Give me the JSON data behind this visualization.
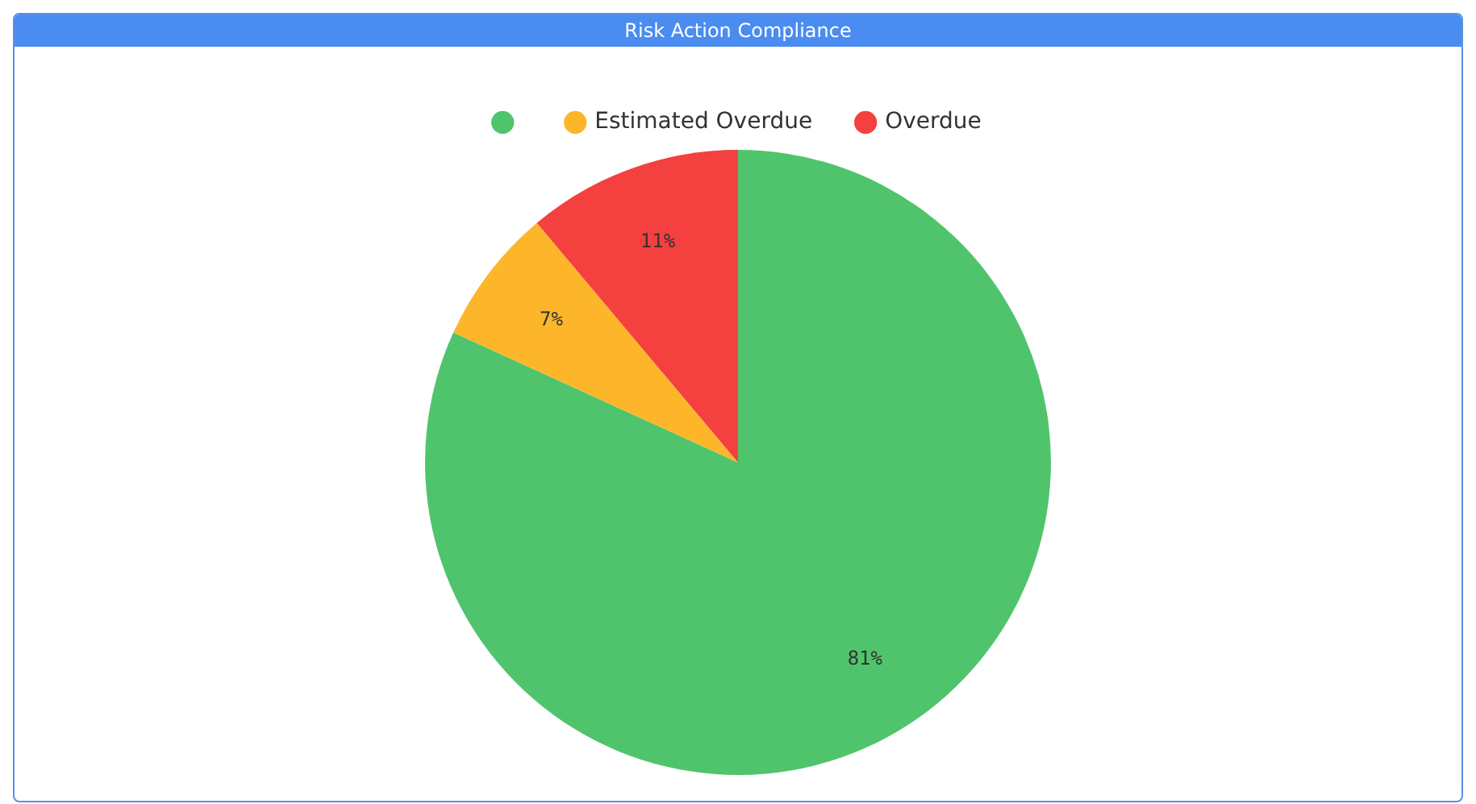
{
  "chart_data": {
    "type": "pie",
    "title": "Risk Action Compliance",
    "categories": [
      null,
      "Estimated Overdue",
      "Overdue"
    ],
    "values": [
      81,
      7,
      11
    ],
    "colors": [
      "#50c46c",
      "#fdb62a",
      "#f4403f"
    ],
    "value_labels": [
      "81%",
      "7%",
      "11%"
    ],
    "legend": "top"
  }
}
